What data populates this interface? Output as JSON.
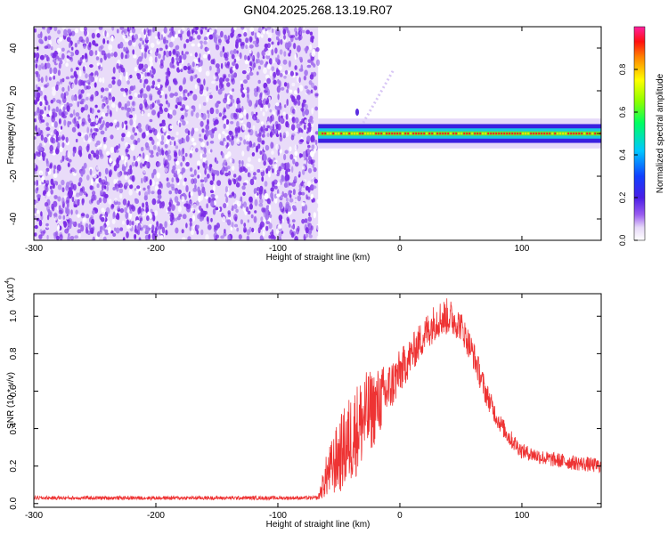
{
  "figure_title": "GN04.2025.268.13.19.R07",
  "colors": {
    "snr_line": "#ee3333",
    "noise": "#7b2be6",
    "noise_light": "#c7a8f0",
    "axis": "#000000"
  },
  "chart_data": [
    {
      "type": "heatmap",
      "title": "GN04.2025.268.13.19.R07",
      "xlabel": "Height of straight line (km)",
      "ylabel": "Frequency (Hz)",
      "xlim": [
        -300,
        165
      ],
      "ylim": [
        -50,
        50
      ],
      "x_ticks": [
        -300,
        -200,
        -100,
        0,
        100
      ],
      "y_ticks": [
        -40,
        -20,
        0,
        20,
        40
      ],
      "x_tick_labels": [
        "-300",
        "-200",
        "-100",
        "0",
        "100"
      ],
      "y_tick_labels": [
        "-40",
        "-20",
        "0",
        "20",
        "40"
      ],
      "colorbar": {
        "label": "Normalized spectral amplitude",
        "range": [
          0,
          1
        ],
        "ticks": [
          0.0,
          0.2,
          0.4,
          0.6,
          0.8
        ],
        "tick_labels": [
          "0.0",
          "0.2",
          "0.4",
          "0.6",
          "0.8"
        ]
      },
      "noise_region_x": [
        -300,
        -67
      ],
      "signal_band": {
        "x_start": -67,
        "x_end": 165,
        "center_frequency": 0,
        "half_width_hz": 2,
        "peak_amplitude": 1.0
      },
      "spur": {
        "x": [
          -30,
          -5
        ],
        "frequency": [
          5,
          30
        ]
      }
    },
    {
      "type": "line",
      "xlabel": "Height of straight line (km)",
      "ylabel": "SNR (10 * v/v)",
      "y_multiplier": "(x10",
      "y_multiplier_exp": "4",
      "y_multiplier_close": ")",
      "xlim": [
        -300,
        165
      ],
      "ylim": [
        -0.02,
        1.12
      ],
      "x_ticks": [
        -300,
        -200,
        -100,
        0,
        100
      ],
      "y_ticks": [
        0.0,
        0.2,
        0.4,
        0.6,
        0.8,
        1.0
      ],
      "x_tick_labels": [
        "-300",
        "-200",
        "-100",
        "0",
        "100"
      ],
      "y_tick_labels": [
        "0.0",
        "0.2",
        "0.4",
        "0.6",
        "0.8",
        "1.0"
      ],
      "series": [
        {
          "x": [
            -300,
            -250,
            -200,
            -150,
            -100,
            -80,
            -67,
            -60,
            -50,
            -40,
            -30,
            -20,
            -10,
            0,
            10,
            20,
            30,
            40,
            50,
            60,
            70,
            80,
            90,
            100,
            120,
            140,
            165
          ],
          "y": [
            0.03,
            0.03,
            0.03,
            0.03,
            0.03,
            0.03,
            0.03,
            0.15,
            0.25,
            0.35,
            0.45,
            0.52,
            0.6,
            0.7,
            0.8,
            0.9,
            0.98,
            1.0,
            0.95,
            0.8,
            0.6,
            0.45,
            0.35,
            0.28,
            0.24,
            0.22,
            0.2
          ],
          "noise_amplitude": [
            0.01,
            0.01,
            0.01,
            0.01,
            0.01,
            0.01,
            0.01,
            0.12,
            0.2,
            0.25,
            0.25,
            0.2,
            0.15,
            0.12,
            0.1,
            0.1,
            0.1,
            0.1,
            0.08,
            0.08,
            0.07,
            0.05,
            0.05,
            0.04,
            0.04,
            0.04,
            0.04
          ]
        }
      ]
    }
  ]
}
